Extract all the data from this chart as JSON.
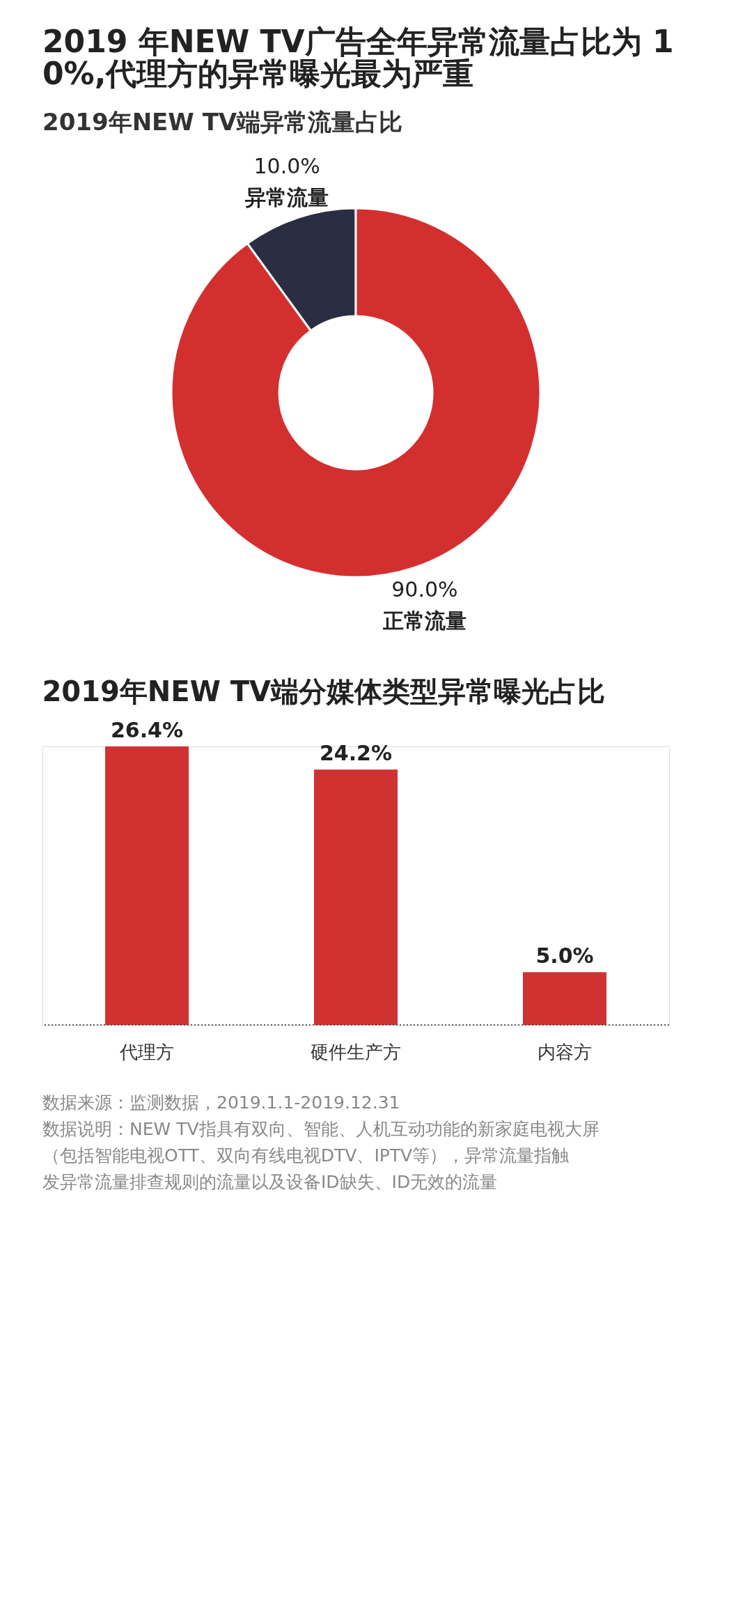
{
  "chart_data": [
    {
      "type": "donut",
      "title": "2019 年NEW TV广告全年异常流量占比为 10%,代理方的异常曝光最为严重",
      "subtitle": "2019年NEW TV端异常流量占比",
      "categories": [
        "异常流量",
        "正常流量"
      ],
      "values": [
        10.0,
        90.0
      ],
      "colors": [
        "#2b2d42",
        "#d42f2f"
      ],
      "value_labels": [
        "10.0%",
        "90.0%"
      ],
      "legend": false
    },
    {
      "type": "bar",
      "title": "2019年NEW TV端分媒体类型异常曝光占比",
      "categories": [
        "代理方",
        "硬件生产方",
        "内容方"
      ],
      "values": [
        26.4,
        24.2,
        5.0
      ],
      "color": "#d03232",
      "value_labels": [
        "26.4%",
        "24.2%",
        "5.0%"
      ],
      "annotations": [
        "数据来源：监测数据，2019.1.1-2019.12.31",
        "数据说明：NEW TV指具有双向、智能、人机互动功能的新家庭电视大屏（包括智能电视OTT、双向有线电视DTV、IPTV等），异常流量指触发异常流量排查规则的流量以及设备ID缺失、ID无效的流量"
      ]
    }
  ]
}
